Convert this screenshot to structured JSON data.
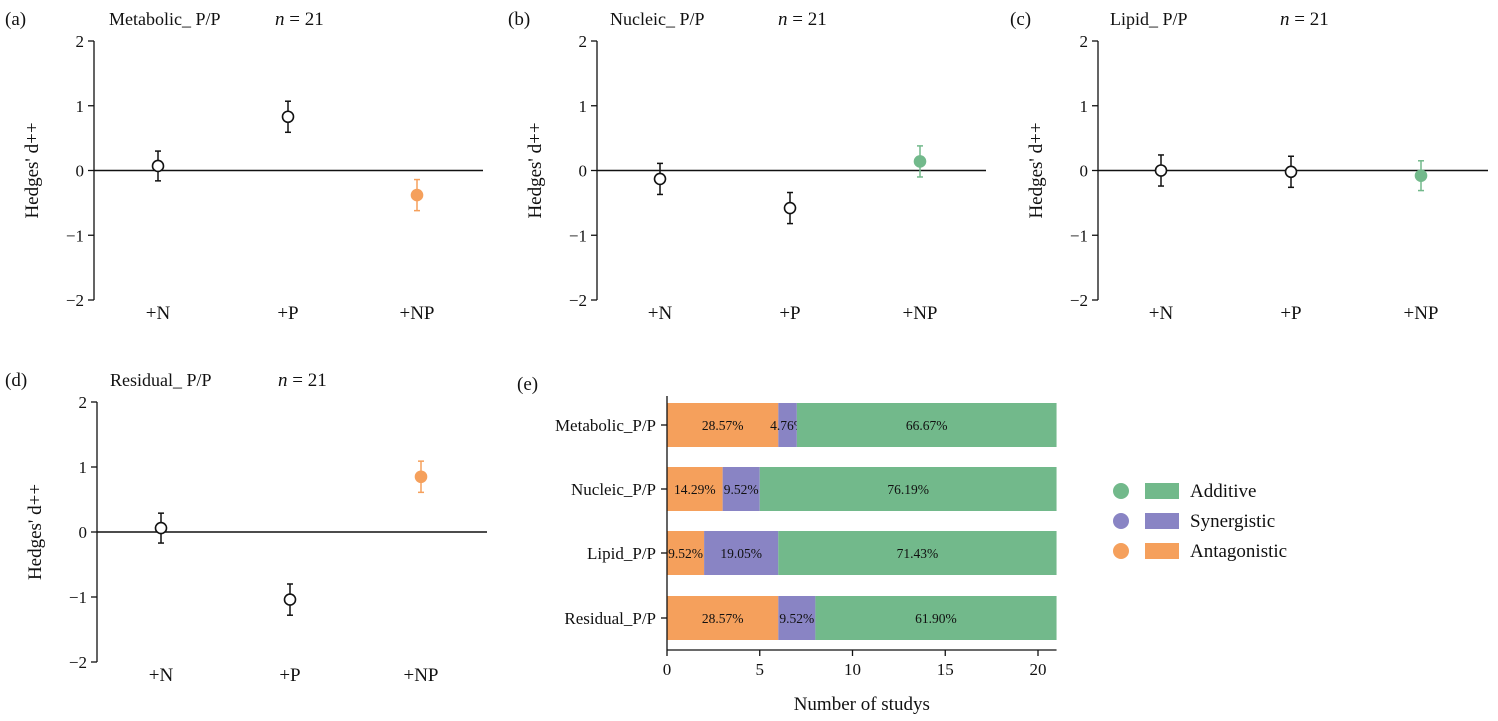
{
  "colors": {
    "additive": "#72b98b",
    "synergistic": "#8984c4",
    "antagonistic": "#f5a05c",
    "neutral": "#111111"
  },
  "shared": {
    "n_prefix": "n",
    "n_suffix": " = 21"
  },
  "legend": [
    "Additive",
    "Synergistic",
    "Antagonistic"
  ],
  "chart_data": [
    {
      "panel": "(a)",
      "title": "Metabolic_ P/P",
      "type": "scatter",
      "ylabel": "Hedges' d++",
      "ylim": [
        -2,
        2
      ],
      "yticks": [
        "2",
        "1",
        "0",
        "−1",
        "−2"
      ],
      "categories": [
        "+N",
        "+P",
        "+NP"
      ],
      "points": [
        {
          "x": "+N",
          "y": 0.07,
          "err": 0.23,
          "color": "neutral",
          "filled": false
        },
        {
          "x": "+P",
          "y": 0.83,
          "err": 0.24,
          "color": "neutral",
          "filled": false
        },
        {
          "x": "+NP",
          "y": -0.38,
          "err": 0.24,
          "color": "antagonistic",
          "filled": true
        }
      ]
    },
    {
      "panel": "(b)",
      "title": "Nucleic_ P/P",
      "type": "scatter",
      "ylabel": "Hedges' d++",
      "ylim": [
        -2,
        2
      ],
      "yticks": [
        "2",
        "1",
        "0",
        "−1",
        "−2"
      ],
      "categories": [
        "+N",
        "+P",
        "+NP"
      ],
      "points": [
        {
          "x": "+N",
          "y": -0.13,
          "err": 0.24,
          "color": "neutral",
          "filled": false
        },
        {
          "x": "+P",
          "y": -0.58,
          "err": 0.24,
          "color": "neutral",
          "filled": false
        },
        {
          "x": "+NP",
          "y": 0.14,
          "err": 0.24,
          "color": "additive",
          "filled": true
        }
      ]
    },
    {
      "panel": "(c)",
      "title": "Lipid_ P/P",
      "type": "scatter",
      "ylabel": "Hedges' d++",
      "ylim": [
        -2,
        2
      ],
      "yticks": [
        "2",
        "1",
        "0",
        "−1",
        "−2"
      ],
      "categories": [
        "+N",
        "+P",
        "+NP"
      ],
      "points": [
        {
          "x": "+N",
          "y": 0.0,
          "err": 0.24,
          "color": "neutral",
          "filled": false
        },
        {
          "x": "+P",
          "y": -0.02,
          "err": 0.24,
          "color": "neutral",
          "filled": false
        },
        {
          "x": "+NP",
          "y": -0.08,
          "err": 0.23,
          "color": "additive",
          "filled": true
        }
      ]
    },
    {
      "panel": "(d)",
      "title": "Residual_ P/P",
      "type": "scatter",
      "ylabel": "Hedges' d++",
      "ylim": [
        -2,
        2
      ],
      "yticks": [
        "2",
        "1",
        "0",
        "−1",
        "−2"
      ],
      "categories": [
        "+N",
        "+P",
        "+NP"
      ],
      "points": [
        {
          "x": "+N",
          "y": 0.06,
          "err": 0.23,
          "color": "neutral",
          "filled": false
        },
        {
          "x": "+P",
          "y": -1.04,
          "err": 0.24,
          "color": "neutral",
          "filled": false
        },
        {
          "x": "+NP",
          "y": 0.85,
          "err": 0.24,
          "color": "antagonistic",
          "filled": true
        }
      ]
    },
    {
      "panel": "(e)",
      "type": "bar",
      "orientation": "horizontal",
      "stacked": true,
      "xlabel": "Number of studys",
      "xlim": [
        0,
        21
      ],
      "xticks": [
        0,
        5,
        10,
        15,
        20
      ],
      "categories": [
        "Metabolic_P/P",
        "Nucleic_P/P",
        "Lipid_P/P",
        "Residual_P/P"
      ],
      "series": [
        {
          "name": "Antagonistic",
          "color": "antagonistic",
          "values": [
            6,
            3,
            2,
            6
          ],
          "labels": [
            "28.57%",
            "14.29%",
            "9.52%",
            "28.57%"
          ]
        },
        {
          "name": "Synergistic",
          "color": "synergistic",
          "values": [
            1,
            2,
            4,
            2
          ],
          "labels": [
            "4.76%",
            "9.52%",
            "19.05%",
            "9.52%"
          ]
        },
        {
          "name": "Additive",
          "color": "additive",
          "values": [
            14,
            16,
            15,
            13
          ],
          "labels": [
            "66.67%",
            "76.19%",
            "71.43%",
            "61.90%"
          ]
        }
      ],
      "legend_position": "right"
    }
  ]
}
